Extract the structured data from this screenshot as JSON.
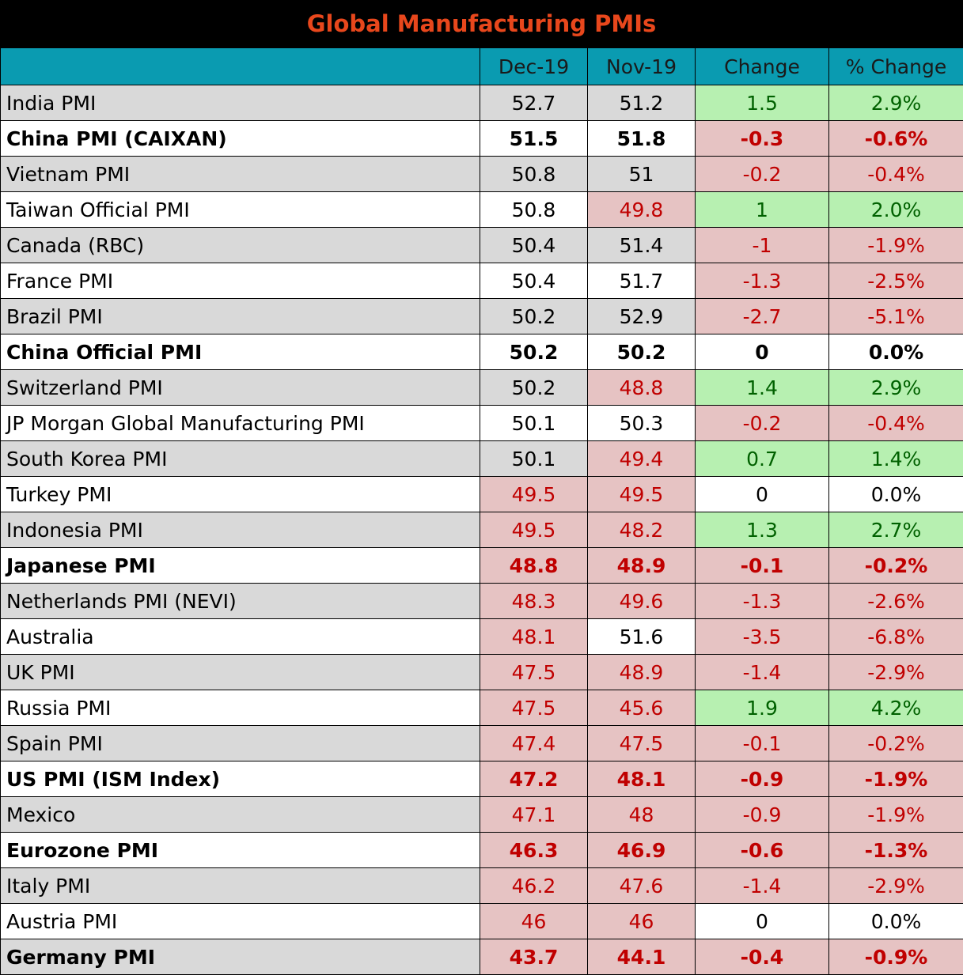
{
  "title": "Global Manufacturing PMIs",
  "columns": [
    "",
    "Dec-19",
    "Nov-19",
    "Change",
    "% Change"
  ],
  "rows": [
    {
      "name": "India PMI",
      "dec": "52.7",
      "nov": "51.2",
      "chg": "1.5",
      "pct": "2.9%",
      "bold": false,
      "band": "gray",
      "dec_s": "",
      "nov_s": "",
      "chg_s": "green",
      "pct_s": "green"
    },
    {
      "name": "China PMI (CAIXAN)",
      "dec": "51.5",
      "nov": "51.8",
      "chg": "-0.3",
      "pct": "-0.6%",
      "bold": true,
      "band": "white",
      "dec_s": "",
      "nov_s": "",
      "chg_s": "red",
      "pct_s": "red"
    },
    {
      "name": "Vietnam PMI",
      "dec": "50.8",
      "nov": "51",
      "chg": "-0.2",
      "pct": "-0.4%",
      "bold": false,
      "band": "gray",
      "dec_s": "",
      "nov_s": "",
      "chg_s": "red",
      "pct_s": "red"
    },
    {
      "name": "Taiwan Official PMI",
      "dec": "50.8",
      "nov": "49.8",
      "chg": "1",
      "pct": "2.0%",
      "bold": false,
      "band": "white",
      "dec_s": "",
      "nov_s": "red",
      "chg_s": "green",
      "pct_s": "green"
    },
    {
      "name": "Canada (RBC)",
      "dec": "50.4",
      "nov": "51.4",
      "chg": "-1",
      "pct": "-1.9%",
      "bold": false,
      "band": "gray",
      "dec_s": "",
      "nov_s": "",
      "chg_s": "red",
      "pct_s": "red"
    },
    {
      "name": "France PMI",
      "dec": "50.4",
      "nov": "51.7",
      "chg": "-1.3",
      "pct": "-2.5%",
      "bold": false,
      "band": "white",
      "dec_s": "",
      "nov_s": "",
      "chg_s": "red",
      "pct_s": "red"
    },
    {
      "name": "Brazil PMI",
      "dec": "50.2",
      "nov": "52.9",
      "chg": "-2.7",
      "pct": "-5.1%",
      "bold": false,
      "band": "gray",
      "dec_s": "",
      "nov_s": "",
      "chg_s": "red",
      "pct_s": "red"
    },
    {
      "name": "China Official PMI",
      "dec": "50.2",
      "nov": "50.2",
      "chg": "0",
      "pct": "0.0%",
      "bold": true,
      "band": "white",
      "dec_s": "",
      "nov_s": "",
      "chg_s": "neutral",
      "pct_s": "neutral"
    },
    {
      "name": "Switzerland PMI",
      "dec": "50.2",
      "nov": "48.8",
      "chg": "1.4",
      "pct": "2.9%",
      "bold": false,
      "band": "gray",
      "dec_s": "",
      "nov_s": "red",
      "chg_s": "green",
      "pct_s": "green"
    },
    {
      "name": "JP Morgan Global Manufacturing PMI",
      "dec": "50.1",
      "nov": "50.3",
      "chg": "-0.2",
      "pct": "-0.4%",
      "bold": false,
      "band": "white",
      "dec_s": "",
      "nov_s": "",
      "chg_s": "red",
      "pct_s": "red"
    },
    {
      "name": "South Korea PMI",
      "dec": "50.1",
      "nov": "49.4",
      "chg": "0.7",
      "pct": "1.4%",
      "bold": false,
      "band": "gray",
      "dec_s": "",
      "nov_s": "red",
      "chg_s": "green",
      "pct_s": "green"
    },
    {
      "name": "Turkey PMI",
      "dec": "49.5",
      "nov": "49.5",
      "chg": "0",
      "pct": "0.0%",
      "bold": false,
      "band": "white",
      "dec_s": "red",
      "nov_s": "red",
      "chg_s": "neutral",
      "pct_s": "neutral"
    },
    {
      "name": "Indonesia PMI",
      "dec": "49.5",
      "nov": "48.2",
      "chg": "1.3",
      "pct": "2.7%",
      "bold": false,
      "band": "gray",
      "dec_s": "red",
      "nov_s": "red",
      "chg_s": "green",
      "pct_s": "green"
    },
    {
      "name": "Japanese PMI",
      "dec": "48.8",
      "nov": "48.9",
      "chg": "-0.1",
      "pct": "-0.2%",
      "bold": true,
      "band": "white",
      "dec_s": "red",
      "nov_s": "red",
      "chg_s": "red",
      "pct_s": "red"
    },
    {
      "name": "Netherlands PMI (NEVI)",
      "dec": "48.3",
      "nov": "49.6",
      "chg": "-1.3",
      "pct": "-2.6%",
      "bold": false,
      "band": "gray",
      "dec_s": "red",
      "nov_s": "red",
      "chg_s": "red",
      "pct_s": "red"
    },
    {
      "name": "Australia",
      "dec": "48.1",
      "nov": "51.6",
      "chg": "-3.5",
      "pct": "-6.8%",
      "bold": false,
      "band": "white",
      "dec_s": "red",
      "nov_s": "",
      "chg_s": "red",
      "pct_s": "red"
    },
    {
      "name": "UK PMI",
      "dec": "47.5",
      "nov": "48.9",
      "chg": "-1.4",
      "pct": "-2.9%",
      "bold": false,
      "band": "gray",
      "dec_s": "red",
      "nov_s": "red",
      "chg_s": "red",
      "pct_s": "red"
    },
    {
      "name": "Russia PMI",
      "dec": "47.5",
      "nov": "45.6",
      "chg": "1.9",
      "pct": "4.2%",
      "bold": false,
      "band": "white",
      "dec_s": "red",
      "nov_s": "red",
      "chg_s": "green",
      "pct_s": "green"
    },
    {
      "name": "Spain PMI",
      "dec": "47.4",
      "nov": "47.5",
      "chg": "-0.1",
      "pct": "-0.2%",
      "bold": false,
      "band": "gray",
      "dec_s": "red",
      "nov_s": "red",
      "chg_s": "red",
      "pct_s": "red"
    },
    {
      "name": "US PMI (ISM Index)",
      "dec": "47.2",
      "nov": "48.1",
      "chg": "-0.9",
      "pct": "-1.9%",
      "bold": true,
      "band": "white",
      "dec_s": "red",
      "nov_s": "red",
      "chg_s": "red",
      "pct_s": "red"
    },
    {
      "name": "Mexico",
      "dec": "47.1",
      "nov": "48",
      "chg": "-0.9",
      "pct": "-1.9%",
      "bold": false,
      "band": "gray",
      "dec_s": "red",
      "nov_s": "red",
      "chg_s": "red",
      "pct_s": "red"
    },
    {
      "name": "Eurozone PMI",
      "dec": "46.3",
      "nov": "46.9",
      "chg": "-0.6",
      "pct": "-1.3%",
      "bold": true,
      "band": "white",
      "dec_s": "red",
      "nov_s": "red",
      "chg_s": "red",
      "pct_s": "red"
    },
    {
      "name": "Italy PMI",
      "dec": "46.2",
      "nov": "47.6",
      "chg": "-1.4",
      "pct": "-2.9%",
      "bold": false,
      "band": "gray",
      "dec_s": "red",
      "nov_s": "red",
      "chg_s": "red",
      "pct_s": "red"
    },
    {
      "name": "Austria PMI",
      "dec": "46",
      "nov": "46",
      "chg": "0",
      "pct": "0.0%",
      "bold": false,
      "band": "white",
      "dec_s": "red",
      "nov_s": "red",
      "chg_s": "neutral",
      "pct_s": "neutral"
    },
    {
      "name": "Germany PMI",
      "dec": "43.7",
      "nov": "44.1",
      "chg": "-0.4",
      "pct": "-0.9%",
      "bold": true,
      "band": "gray",
      "dec_s": "red",
      "nov_s": "red",
      "chg_s": "red",
      "pct_s": "red"
    }
  ],
  "colors": {
    "header_bg": "#0a9bb1",
    "title_bg": "#000000",
    "title_text": "#e8471c",
    "positive_bg": "#b7f0b1",
    "positive_text": "#006100",
    "negative_bg": "#e6c3c3",
    "negative_text": "#c00000",
    "band_gray": "#d9d9d9"
  }
}
